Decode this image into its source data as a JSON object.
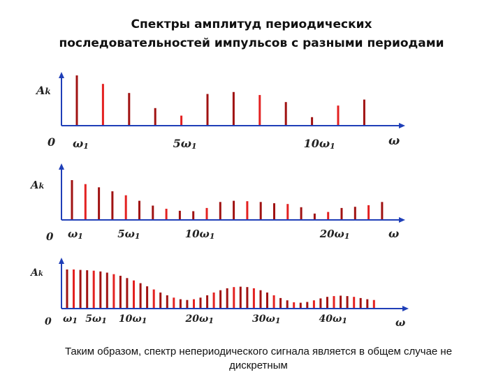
{
  "title_lines": [
    "Спектры амплитуд периодических",
    "последовательностей импульсов с разными периодами"
  ],
  "caption_lines": [
    "Таким образом, спектр непериодического сигнала является в общем случае не",
    "дискретным"
  ],
  "colors": {
    "bar": "#a01212",
    "bar_highlight": "#e32121",
    "axis": "#1f3fb8"
  },
  "chart_data": [
    {
      "type": "bar",
      "ylabel": "Ak",
      "xlabel": "ω",
      "origin_label": "0",
      "tick_labels": [
        {
          "text": "ω",
          "sub": "1",
          "k": 1
        },
        {
          "text": "5ω",
          "sub": "1",
          "k": 5
        },
        {
          "text": "10ω",
          "sub": "1",
          "k": 10
        }
      ],
      "k": [
        1,
        2,
        3,
        4,
        5,
        6,
        7,
        8,
        9,
        10,
        11,
        12
      ],
      "values": [
        1.0,
        0.83,
        0.65,
        0.35,
        0.2,
        0.63,
        0.67,
        0.61,
        0.47,
        0.17,
        0.4,
        0.52
      ]
    },
    {
      "type": "bar",
      "ylabel": "Ak",
      "xlabel": "ω",
      "origin_label": "0",
      "tick_labels": [
        {
          "text": "ω",
          "sub": "1",
          "k": 1
        },
        {
          "text": "5ω",
          "sub": "1",
          "k": 5
        },
        {
          "text": "10ω",
          "sub": "1",
          "k": 10
        },
        {
          "text": "20ω",
          "sub": "1",
          "k": 20
        }
      ],
      "k": [
        1,
        2,
        3,
        4,
        5,
        6,
        7,
        8,
        9,
        10,
        11,
        12,
        13,
        14,
        15,
        16,
        17,
        18,
        19,
        20,
        21,
        22,
        23,
        24
      ],
      "values": [
        1.0,
        0.9,
        0.82,
        0.72,
        0.62,
        0.48,
        0.36,
        0.28,
        0.23,
        0.22,
        0.3,
        0.45,
        0.48,
        0.47,
        0.45,
        0.42,
        0.4,
        0.32,
        0.16,
        0.2,
        0.3,
        0.33,
        0.37,
        0.45
      ]
    },
    {
      "type": "bar",
      "ylabel": "Ak",
      "xlabel": "ω",
      "origin_label": "0",
      "tick_labels": [
        {
          "text": "ω",
          "sub": "1",
          "k": 1
        },
        {
          "text": "5ω",
          "sub": "1",
          "k": 5
        },
        {
          "text": "10ω",
          "sub": "1",
          "k": 10
        },
        {
          "text": "20ω",
          "sub": "1",
          "k": 20
        },
        {
          "text": "30ω",
          "sub": "1",
          "k": 30
        },
        {
          "text": "40ω",
          "sub": "1",
          "k": 40
        }
      ],
      "k": [
        1,
        2,
        3,
        4,
        5,
        6,
        7,
        8,
        9,
        10,
        11,
        12,
        13,
        14,
        15,
        16,
        17,
        18,
        19,
        20,
        21,
        22,
        23,
        24,
        25,
        26,
        27,
        28,
        29,
        30,
        31,
        32,
        33,
        34,
        35,
        36,
        37,
        38,
        39,
        40,
        41,
        42,
        43,
        44,
        45,
        46,
        47
      ],
      "values": [
        1.0,
        1.0,
        0.99,
        0.98,
        0.97,
        0.95,
        0.92,
        0.88,
        0.84,
        0.78,
        0.72,
        0.65,
        0.57,
        0.49,
        0.41,
        0.34,
        0.28,
        0.24,
        0.22,
        0.24,
        0.28,
        0.34,
        0.41,
        0.47,
        0.52,
        0.55,
        0.56,
        0.55,
        0.52,
        0.47,
        0.41,
        0.34,
        0.27,
        0.21,
        0.16,
        0.15,
        0.17,
        0.21,
        0.26,
        0.3,
        0.32,
        0.33,
        0.32,
        0.3,
        0.27,
        0.24,
        0.22
      ]
    }
  ]
}
